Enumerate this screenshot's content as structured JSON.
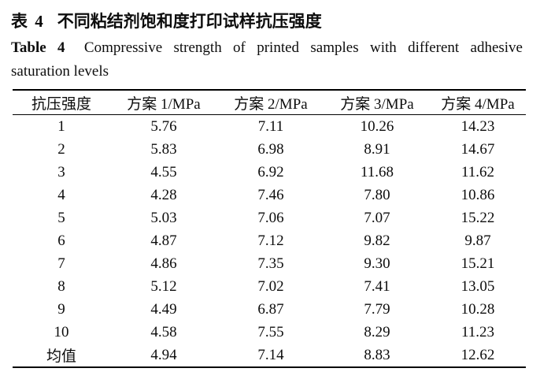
{
  "captions": {
    "zh_label": "表 4",
    "zh_title": "不同粘结剂饱和度打印试样抗压强度",
    "en_label": "Table 4",
    "en_title_line1": "Compressive strength of printed samples with different adhesive",
    "en_title_line2": "saturation levels"
  },
  "table": {
    "headers": [
      "抗压强度",
      "方案 1/MPa",
      "方案 2/MPa",
      "方案 3/MPa",
      "方案 4/MPa"
    ],
    "rows": [
      [
        "1",
        "5.76",
        "7.11",
        "10.26",
        "14.23"
      ],
      [
        "2",
        "5.83",
        "6.98",
        "8.91",
        "14.67"
      ],
      [
        "3",
        "4.55",
        "6.92",
        "11.68",
        "11.62"
      ],
      [
        "4",
        "4.28",
        "7.46",
        "7.80",
        "10.86"
      ],
      [
        "5",
        "5.03",
        "7.06",
        "7.07",
        "15.22"
      ],
      [
        "6",
        "4.87",
        "7.12",
        "9.82",
        "9.87"
      ],
      [
        "7",
        "4.86",
        "7.35",
        "9.30",
        "15.21"
      ],
      [
        "8",
        "5.12",
        "7.02",
        "7.41",
        "13.05"
      ],
      [
        "9",
        "4.49",
        "6.87",
        "7.79",
        "10.28"
      ],
      [
        "10",
        "4.58",
        "7.55",
        "8.29",
        "11.23"
      ],
      [
        "均值",
        "4.94",
        "7.14",
        "8.83",
        "12.62"
      ]
    ]
  },
  "chart_data": {
    "type": "table",
    "title": "表 4 不同粘结剂饱和度打印试样抗压强度 (Table 4 Compressive strength of printed samples with different adhesive saturation levels)",
    "columns": [
      "抗压强度",
      "方案 1/MPa",
      "方案 2/MPa",
      "方案 3/MPa",
      "方案 4/MPa"
    ],
    "sample_ids": [
      1,
      2,
      3,
      4,
      5,
      6,
      7,
      8,
      9,
      10
    ],
    "series": [
      {
        "name": "方案 1/MPa",
        "values": [
          5.76,
          5.83,
          4.55,
          4.28,
          5.03,
          4.87,
          4.86,
          5.12,
          4.49,
          4.58
        ],
        "mean": 4.94
      },
      {
        "name": "方案 2/MPa",
        "values": [
          7.11,
          6.98,
          6.92,
          7.46,
          7.06,
          7.12,
          7.35,
          7.02,
          6.87,
          7.55
        ],
        "mean": 7.14
      },
      {
        "name": "方案 3/MPa",
        "values": [
          10.26,
          8.91,
          11.68,
          7.8,
          7.07,
          9.82,
          9.3,
          7.41,
          7.79,
          8.29
        ],
        "mean": 8.83
      },
      {
        "name": "方案 4/MPa",
        "values": [
          14.23,
          14.67,
          11.62,
          10.86,
          15.22,
          9.87,
          15.21,
          13.05,
          10.28,
          11.23
        ],
        "mean": 12.62
      }
    ],
    "mean_row_label": "均值"
  },
  "colors": {
    "background": "#ffffff",
    "text": "#0d0d0d",
    "rule": "#000000"
  }
}
